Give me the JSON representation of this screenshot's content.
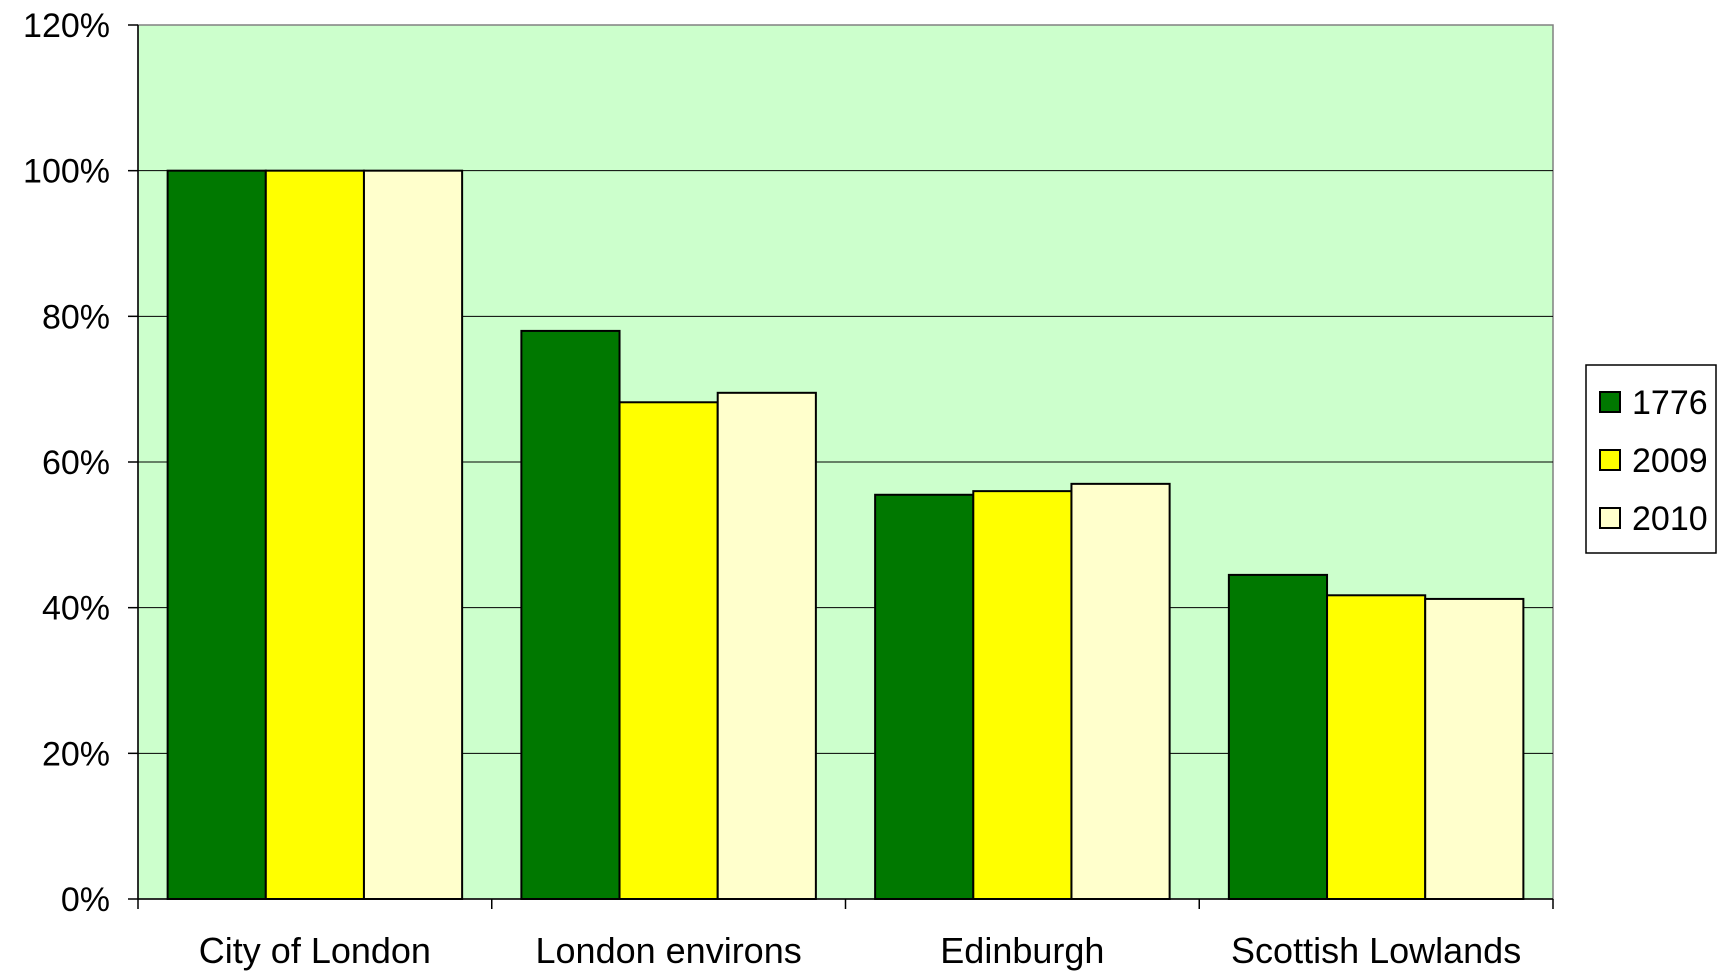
{
  "chart_data": {
    "type": "bar",
    "categories": [
      "City of London",
      "London environs",
      "Edinburgh",
      "Scottish Lowlands"
    ],
    "series": [
      {
        "name": "1776",
        "values": [
          100,
          78,
          55.5,
          44.5
        ],
        "color": "#007800"
      },
      {
        "name": "2009",
        "values": [
          100,
          68.2,
          56,
          41.7
        ],
        "color": "#FFFF00"
      },
      {
        "name": "2010",
        "values": [
          100,
          69.5,
          57,
          41.2
        ],
        "color": "#FFFFCC"
      }
    ],
    "ylim": [
      0,
      120
    ],
    "ytick_values": [
      0,
      20,
      40,
      60,
      80,
      100,
      120
    ],
    "ytick_labels": [
      "0%",
      "20%",
      "40%",
      "60%",
      "80%",
      "100%",
      "120%"
    ],
    "y_unit": "%",
    "grid": true,
    "plot_background": "#CCFFCC",
    "legend_position": "right"
  }
}
